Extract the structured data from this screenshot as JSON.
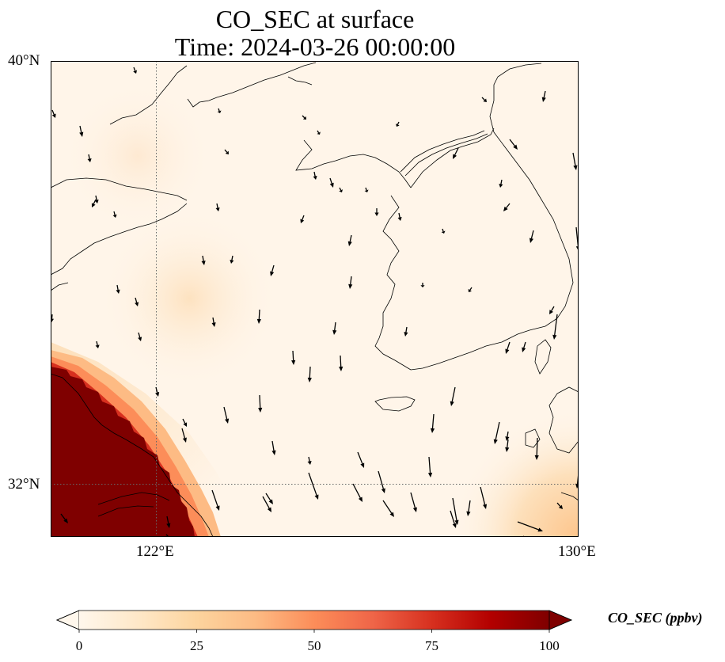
{
  "title": {
    "line1": "CO_SEC at surface",
    "line2": "Time: 2024-03-26 00:00:00"
  },
  "map": {
    "type": "filled-contour map with wind vectors",
    "lon_range_deg_E": [
      118,
      130
    ],
    "lat_range_deg_N": [
      30.8,
      40
    ],
    "lat_ticks": [
      {
        "value": 40,
        "label": "40°N"
      },
      {
        "value": 32,
        "label": "32°N"
      }
    ],
    "lon_ticks": [
      {
        "value": 122,
        "label": "122°E"
      },
      {
        "value": 130,
        "label": "130°E"
      }
    ],
    "gridlines": "dotted",
    "high_concentration_region": "southwest corner (east China coast), exceeds 100 ppbv",
    "moderate_region": "southeast corner near Kyushu, ~15-25 ppbv",
    "background_level": "~2-10 ppbv",
    "wind_arrows": "mostly southward flow"
  },
  "colorbar": {
    "colormap": "OrRd",
    "min": 0,
    "max": 100,
    "extend": "both",
    "tick_labels": [
      "0",
      "25",
      "50",
      "75",
      "100"
    ],
    "label": "CO_SEC (ppbv)",
    "colors": [
      "#fff7ec",
      "#fdd49e",
      "#fc8d59",
      "#d7301f",
      "#7f0000"
    ]
  }
}
